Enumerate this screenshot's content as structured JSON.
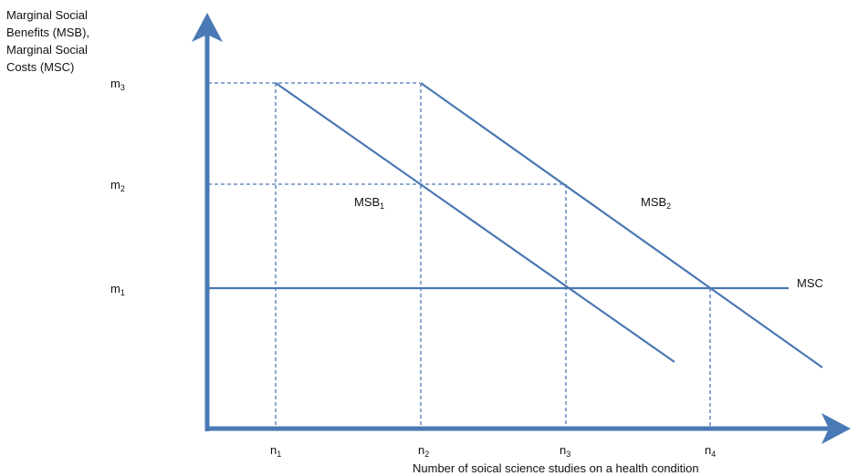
{
  "y_axis_label": [
    "Marginal Social",
    "Benefits (MSB),",
    "Marginal Social",
    "Costs (MSC)"
  ],
  "x_axis_label": "Number of soical science studies on a health condition",
  "y_ticks": [
    {
      "base": "m",
      "sub": "3"
    },
    {
      "base": "m",
      "sub": "2"
    },
    {
      "base": "m",
      "sub": "1"
    }
  ],
  "x_ticks": [
    {
      "base": "n",
      "sub": "1"
    },
    {
      "base": "n",
      "sub": "2"
    },
    {
      "base": "n",
      "sub": "3"
    },
    {
      "base": "n",
      "sub": "4"
    }
  ],
  "curves": {
    "msb1": {
      "base": "MSB",
      "sub": "1"
    },
    "msb2": {
      "base": "MSB",
      "sub": "2"
    },
    "msc": {
      "label": "MSC"
    }
  },
  "colors": {
    "axis": "#4a7ab5",
    "line": "#4a78b2",
    "dash": "#4a78b2"
  }
}
